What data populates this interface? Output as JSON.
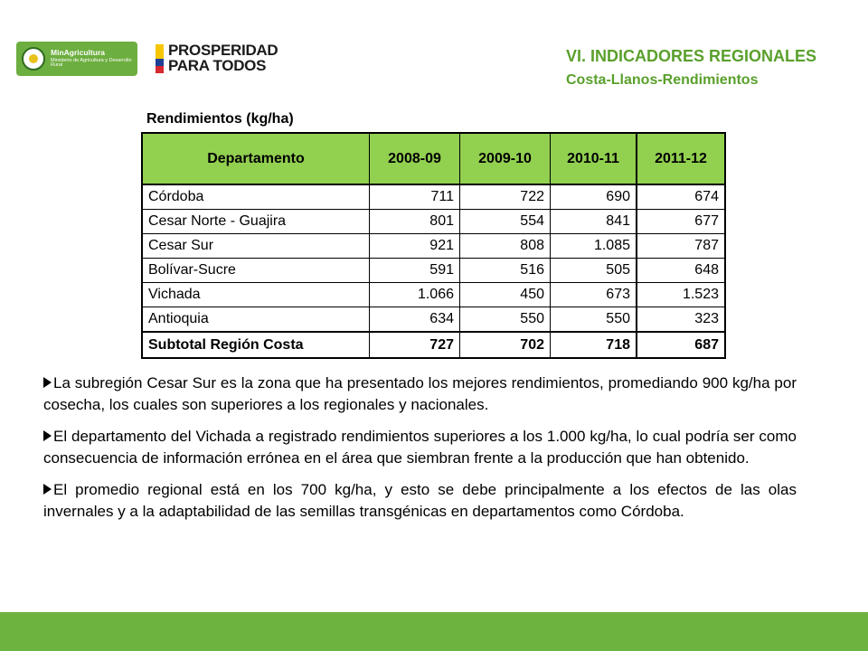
{
  "header": {
    "title": "VI. INDICADORES REGIONALES",
    "subtitle": "Costa-Llanos-Rendimientos"
  },
  "logos": {
    "minagri_name": "MinAgricultura",
    "minagri_sub": "Ministerio de Agricultura y Desarrollo Rural",
    "prosperidad_line1": "PROSPERIDAD",
    "prosperidad_line2": "PARA TODOS",
    "flag_colors": [
      "#f6c700",
      "#1f3f97",
      "#d7272f"
    ]
  },
  "table": {
    "title": "Rendimientos (kg/ha)",
    "headers": [
      "Departamento",
      "2008-09",
      "2009-10",
      "2010-11",
      "2011-12"
    ],
    "rows": [
      {
        "name": "Córdoba",
        "values": [
          "711",
          "722",
          "690",
          "674"
        ]
      },
      {
        "name": "Cesar Norte - Guajira",
        "values": [
          "801",
          "554",
          "841",
          "677"
        ]
      },
      {
        "name": "Cesar Sur",
        "values": [
          "921",
          "808",
          "1.085",
          "787"
        ]
      },
      {
        "name": "Bolívar-Sucre",
        "values": [
          "591",
          "516",
          "505",
          "648"
        ]
      },
      {
        "name": "Vichada",
        "values": [
          "1.066",
          "450",
          "673",
          "1.523"
        ]
      },
      {
        "name": "Antioquia",
        "values": [
          "634",
          "550",
          "550",
          "323"
        ]
      }
    ],
    "total": {
      "name": "Subtotal Región Costa",
      "values": [
        "727",
        "702",
        "718",
        "687"
      ]
    },
    "header_color": "#92d050"
  },
  "bullets": [
    "La subregión Cesar Sur es la zona que ha presentado los mejores rendimientos, promediando 900 kg/ha por cosecha, los cuales son superiores a los regionales y nacionales.",
    "El departamento del Vichada a registrado rendimientos superiores a los 1.000 kg/ha, lo cual podría ser como consecuencia de información errónea en el área que siembran frente a la producción que han obtenido.",
    "El promedio regional está en los 700 kg/ha, y esto se debe principalmente a los efectos de las olas invernales y a la adaptabilidad de las semillas transgénicas en departamentos como Córdoba."
  ],
  "colors": {
    "accent": "#5aa02c",
    "footer": "#6cb33f"
  }
}
